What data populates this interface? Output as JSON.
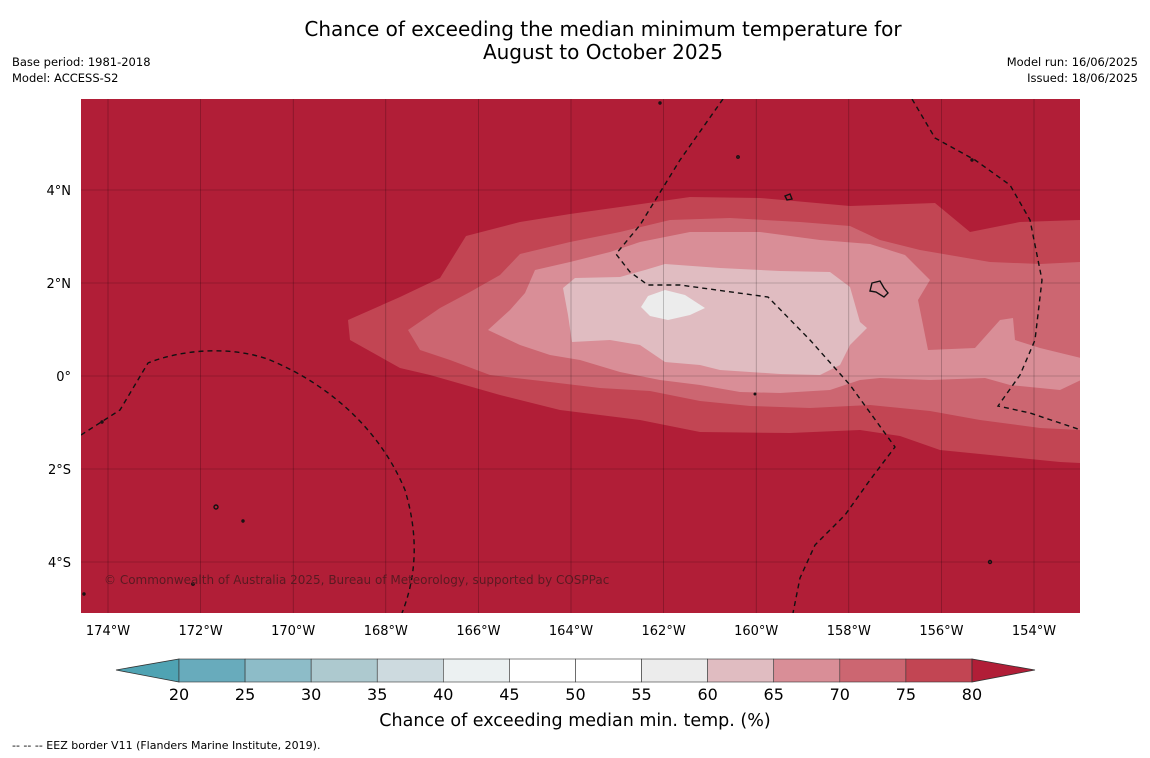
{
  "header": {
    "title_line1": "Chance of exceeding the median minimum temperature for",
    "title_line2": "August to October 2025",
    "base_period": "Base period: 1981-2018",
    "model": "Model: ACCESS-S2",
    "model_run": "Model run: 16/06/2025",
    "issued": "Issued: 18/06/2025"
  },
  "map": {
    "credit": "© Commonwealth of Australia 2025, Bureau of Meteorology, supported by COSPPac",
    "lon_labels": [
      "174°W",
      "172°W",
      "170°W",
      "168°W",
      "166°W",
      "164°W",
      "162°W",
      "160°W",
      "158°W",
      "156°W",
      "154°W"
    ],
    "lat_labels": [
      "4°N",
      "2°N",
      "0°",
      "2°S",
      "4°S"
    ],
    "background_color": "#b11e37",
    "band_colors": {
      "75-80": "#c24553",
      "70-75": "#cc6671",
      "65-70": "#d98e97",
      "60-65": "#e0bcc1",
      "55-60": "#ececec"
    }
  },
  "colorbar": {
    "ticks": [
      "20",
      "25",
      "30",
      "35",
      "40",
      "45",
      "50",
      "55",
      "60",
      "65",
      "70",
      "75",
      "80"
    ],
    "colors": [
      "#68abbc",
      "#8dbcc8",
      "#adc9cf",
      "#cddadf",
      "#ecf1f2",
      "#ffffff",
      "#ffffff",
      "#ececec",
      "#e0bcc1",
      "#d98e97",
      "#cc6671",
      "#c24553"
    ],
    "under_color": "#4fa3b3",
    "over_color": "#b11e37",
    "label": "Chance of exceeding median min. temp. (%)"
  },
  "footnote": "--  --  -- EEZ border V11 (Flanders Marine Institute, 2019)."
}
